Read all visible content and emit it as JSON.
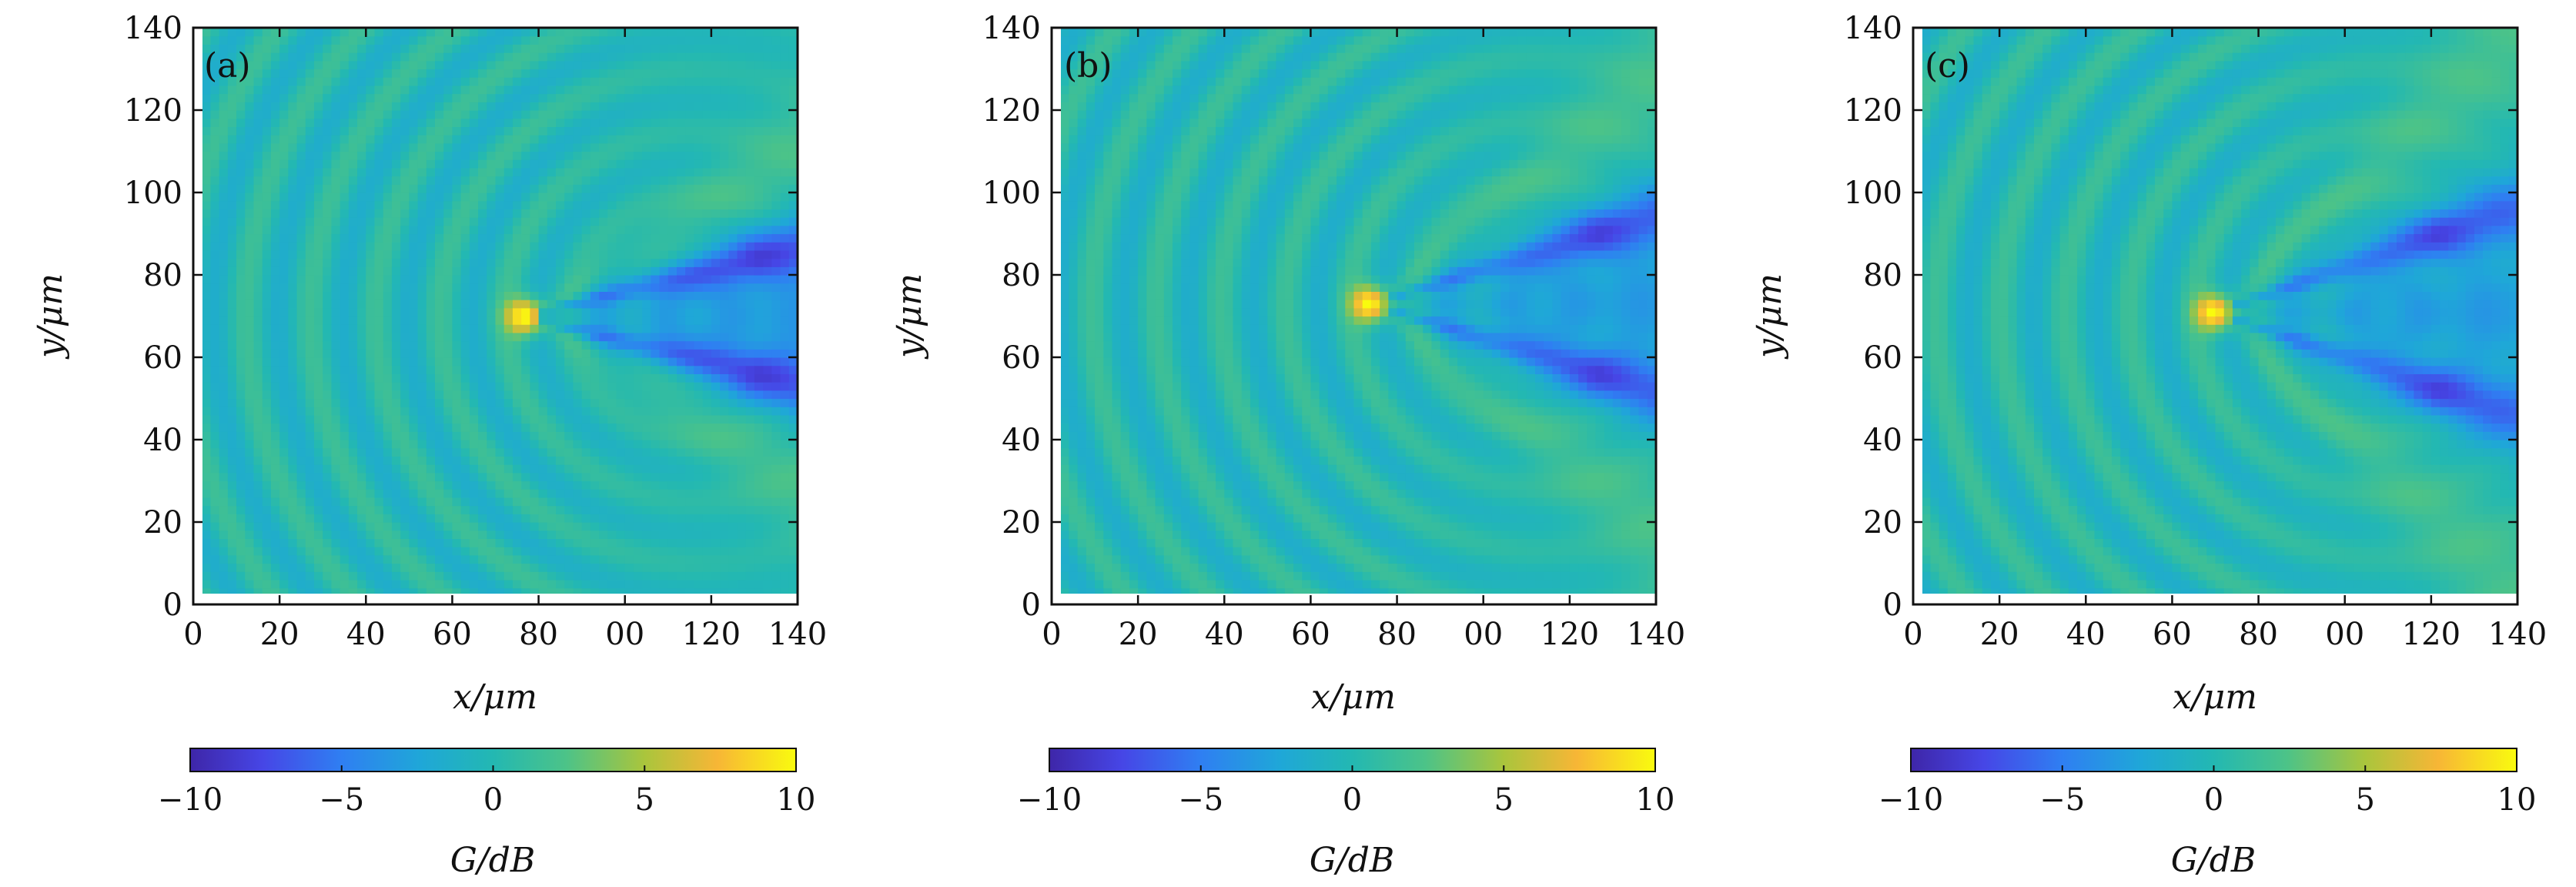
{
  "chart_data": [
    {
      "type": "heatmap",
      "panel_label": "(a)",
      "xlabel": "x/μm",
      "ylabel": "y/μm",
      "xlim": [
        0,
        140
      ],
      "ylim": [
        0,
        140
      ],
      "x_ticks": [
        "0",
        "20",
        "40",
        "60",
        "80",
        "00",
        "120",
        "140"
      ],
      "y_ticks": [
        "0",
        "20",
        "40",
        "60",
        "80",
        "100",
        "120",
        "140"
      ],
      "colorbar": {
        "label": "G/dB",
        "range": [
          -10,
          10
        ],
        "ticks": [
          "−10",
          "−5",
          "0",
          "5",
          "10"
        ]
      },
      "hotspot": {
        "x": 77,
        "y": 70
      },
      "cone_half_angle_deg": 15
    },
    {
      "type": "heatmap",
      "panel_label": "(b)",
      "xlabel": "x/μm",
      "ylabel": "y/μm",
      "xlim": [
        0,
        140
      ],
      "ylim": [
        0,
        140
      ],
      "x_ticks": [
        "0",
        "20",
        "40",
        "60",
        "80",
        "00",
        "120",
        "140"
      ],
      "y_ticks": [
        "0",
        "20",
        "40",
        "60",
        "80",
        "100",
        "120",
        "140"
      ],
      "colorbar": {
        "label": "G/dB",
        "range": [
          -10,
          10
        ],
        "ticks": [
          "−10",
          "−5",
          "0",
          "5",
          "10"
        ]
      },
      "hotspot": {
        "x": 74,
        "y": 73
      },
      "cone_half_angle_deg": 18
    },
    {
      "type": "heatmap",
      "panel_label": "(c)",
      "xlabel": "x/μm",
      "ylabel": "y/μm",
      "xlim": [
        0,
        140
      ],
      "ylim": [
        0,
        140
      ],
      "x_ticks": [
        "0",
        "20",
        "40",
        "60",
        "80",
        "00",
        "120",
        "140"
      ],
      "y_ticks": [
        "0",
        "20",
        "40",
        "60",
        "80",
        "100",
        "120",
        "140"
      ],
      "colorbar": {
        "label": "G/dB",
        "range": [
          -10,
          10
        ],
        "ticks": [
          "−10",
          "−5",
          "0",
          "5",
          "10"
        ]
      },
      "hotspot": {
        "x": 70,
        "y": 71
      },
      "cone_half_angle_deg": 20
    }
  ],
  "colors": {
    "map_low": "#3e26a8",
    "map_mid": "#22b6b4",
    "map_high": "#f9fb0e"
  }
}
